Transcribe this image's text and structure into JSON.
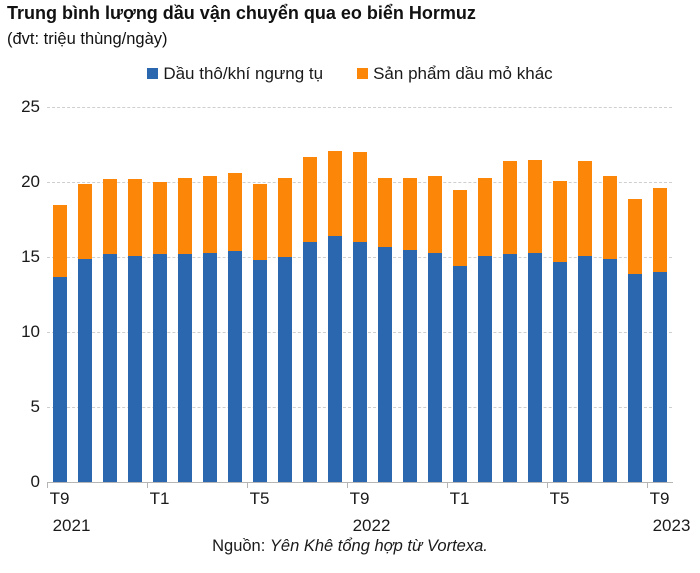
{
  "title": "Trung bình lượng dầu vận chuyển qua eo biển Hormuz",
  "subtitle": "(đvt: triệu thùng/ngày)",
  "legend": {
    "crude_label": "Dầu thô/khí ngưng tụ",
    "products_label": "Sản phẩm dầu mỏ khác"
  },
  "colors": {
    "crude": "#2b67ae",
    "products": "#fc8608",
    "grid": "#cfcfcf",
    "axis": "#b5b5b5",
    "text": "#1a1a1a"
  },
  "source": {
    "prefix": "Nguồn: ",
    "credit": "Yên Khê tổng hợp từ Vortexa."
  },
  "chart_data": {
    "type": "bar",
    "stacked": true,
    "title": "Trung bình lượng dầu vận chuyển qua eo biển Hormuz",
    "unit": "triệu thùng/ngày",
    "categories": [
      "T9 2021",
      "T10 2021",
      "T11 2021",
      "T12 2021",
      "T1 2022",
      "T2 2022",
      "T3 2022",
      "T4 2022",
      "T5 2022",
      "T6 2022",
      "T7 2022",
      "T8 2022",
      "T9 2022",
      "T10 2022",
      "T11 2022",
      "T12 2022",
      "T1 2023",
      "T2 2023",
      "T3 2023",
      "T4 2023",
      "T5 2023",
      "T6 2023",
      "T7 2023",
      "T8 2023",
      "T9 2023"
    ],
    "series": [
      {
        "name": "Dầu thô/khí ngưng tụ",
        "color": "#2b67ae",
        "values": [
          13.7,
          14.9,
          15.2,
          15.1,
          15.2,
          15.2,
          15.3,
          15.4,
          14.8,
          15.0,
          16.0,
          16.4,
          16.0,
          15.7,
          15.5,
          15.3,
          14.4,
          15.1,
          15.2,
          15.3,
          14.7,
          15.1,
          14.9,
          13.9,
          14.0
        ]
      },
      {
        "name": "Sản phẩm dầu mỏ khác",
        "color": "#fc8608",
        "values": [
          4.8,
          5.0,
          5.0,
          5.1,
          4.8,
          5.1,
          5.1,
          5.2,
          5.1,
          5.3,
          5.7,
          5.7,
          6.0,
          4.6,
          4.8,
          5.1,
          5.1,
          5.2,
          6.2,
          6.2,
          5.4,
          6.3,
          5.5,
          5.0,
          5.6
        ]
      }
    ],
    "totals": [
      18.5,
      19.9,
      20.2,
      20.2,
      20.0,
      20.3,
      20.4,
      20.6,
      19.9,
      20.3,
      21.7,
      22.1,
      22.0,
      20.3,
      20.3,
      20.4,
      19.5,
      20.3,
      21.4,
      21.5,
      20.1,
      21.4,
      20.4,
      18.9,
      19.6
    ],
    "ylim": [
      0,
      25
    ],
    "yticks": [
      0,
      5,
      10,
      15,
      20,
      25
    ],
    "xticks": [
      {
        "slot": 0,
        "label": "T9"
      },
      {
        "slot": 4,
        "label": "T1"
      },
      {
        "slot": 8,
        "label": "T5"
      },
      {
        "slot": 12,
        "label": "T9"
      },
      {
        "slot": 16,
        "label": "T1"
      },
      {
        "slot": 20,
        "label": "T5"
      },
      {
        "slot": 24,
        "label": "T9"
      }
    ],
    "year_labels": [
      {
        "slot": 0,
        "label": "2021"
      },
      {
        "slot": 12,
        "label": "2022"
      },
      {
        "slot": 24,
        "label": "2023"
      }
    ],
    "grid": "horizontal-dashed",
    "legend_position": "top-center"
  }
}
